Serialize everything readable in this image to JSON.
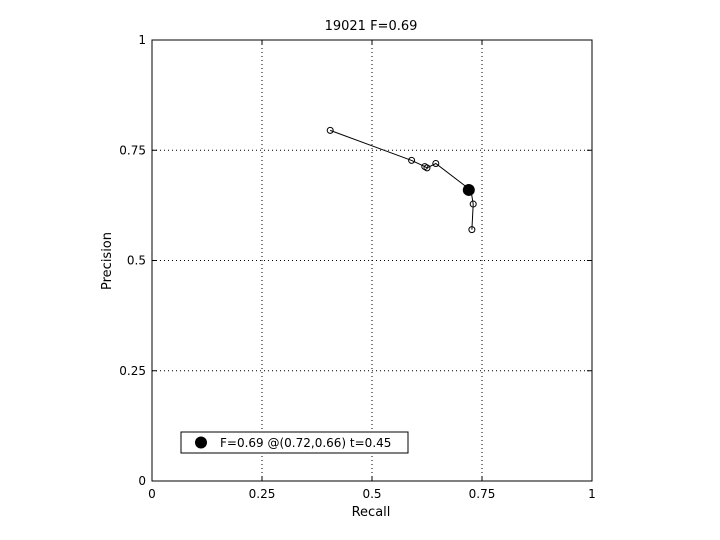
{
  "chart_data": {
    "type": "line",
    "title": "19021 F=0.69",
    "xlabel": "Recall",
    "ylabel": "Precision",
    "xlim": [
      0,
      1
    ],
    "ylim": [
      0,
      1
    ],
    "xticks": [
      0,
      0.25,
      0.5,
      0.75,
      1
    ],
    "yticks": [
      0,
      0.25,
      0.5,
      0.75,
      1
    ],
    "xtick_labels": [
      "0",
      "0.25",
      "0.5",
      "0.75",
      "1"
    ],
    "ytick_labels": [
      "0",
      "0.25",
      "0.5",
      "0.75",
      "1"
    ],
    "grid": true,
    "series": [
      {
        "marker": "open-circle",
        "color": "#000000",
        "x": [
          0.405,
          0.59,
          0.62,
          0.625,
          0.645,
          0.725,
          0.73,
          0.727
        ],
        "y": [
          0.795,
          0.727,
          0.713,
          0.71,
          0.72,
          0.659,
          0.628,
          0.57
        ]
      }
    ],
    "highlight_point": {
      "x": 0.72,
      "y": 0.66,
      "marker": "filled-circle",
      "color": "#000000"
    },
    "legend": {
      "placement": "bottom-left",
      "entries": [
        {
          "label": "F=0.69 @(0.72,0.66) t=0.45",
          "marker": "filled-circle"
        }
      ]
    }
  }
}
